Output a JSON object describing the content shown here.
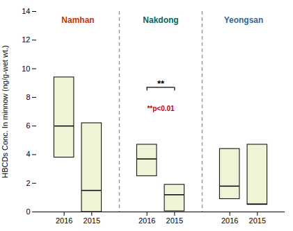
{
  "chart_data": {
    "type": "box",
    "ylabel": "HBCDs Conc. In minnow (ng/g-wet wt.)",
    "ylim": [
      0,
      14
    ],
    "yticks": [
      0,
      2,
      4,
      6,
      8,
      10,
      12,
      14
    ],
    "color": "#eef5d6",
    "groups": [
      {
        "name": "Namhan",
        "color": "#cc3300",
        "categories": [
          "2016",
          "2015"
        ],
        "q1": [
          3.8,
          0.0
        ],
        "median": [
          6.0,
          1.5
        ],
        "q3": [
          9.4,
          6.2
        ]
      },
      {
        "name": "Nakdong",
        "color": "#006666",
        "categories": [
          "2016",
          "2015"
        ],
        "q1": [
          2.5,
          0.05
        ],
        "median": [
          3.7,
          1.2
        ],
        "q3": [
          4.7,
          1.9
        ]
      },
      {
        "name": "Yeongsan",
        "color": "#336699",
        "categories": [
          "2016",
          "2015"
        ],
        "q1": [
          0.9,
          0.5
        ],
        "median": [
          1.8,
          0.55
        ],
        "q3": [
          4.4,
          4.7
        ]
      }
    ],
    "annotations": [
      {
        "type": "bracket",
        "text": "**",
        "group": "Nakdong",
        "y": 8.7
      },
      {
        "type": "text",
        "text": "**p<0.01",
        "group": "Nakdong",
        "y": 7.2,
        "color": "#cc0000"
      }
    ]
  }
}
